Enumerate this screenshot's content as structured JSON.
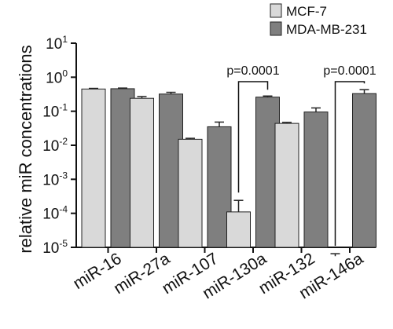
{
  "chart_data": {
    "type": "bar",
    "title": "",
    "xlabel": "",
    "ylabel": "relative miR concentrations",
    "y_scale": "log",
    "ylim": [
      1e-05,
      10
    ],
    "y_ticks": [
      {
        "value": 10,
        "base": "10",
        "exp": "1"
      },
      {
        "value": 1,
        "base": "10",
        "exp": "0"
      },
      {
        "value": 0.1,
        "base": "10",
        "exp": "-1"
      },
      {
        "value": 0.01,
        "base": "10",
        "exp": "-2"
      },
      {
        "value": 0.001,
        "base": "10",
        "exp": "-3"
      },
      {
        "value": 0.0001,
        "base": "10",
        "exp": "-4"
      },
      {
        "value": 1e-05,
        "base": "10",
        "exp": "-5"
      }
    ],
    "categories": [
      "miR-16",
      "miR-27a",
      "miR-107",
      "miR-130a",
      "miR-132",
      "miR-146a"
    ],
    "series": [
      {
        "name": "MCF-7",
        "color": "#d9d9d9",
        "values": [
          0.45,
          0.24,
          0.015,
          0.00011,
          0.044,
          5.5e-06
        ],
        "error_upper": [
          0.47,
          0.27,
          0.016,
          0.00024,
          0.047,
          6.5e-06
        ]
      },
      {
        "name": "MDA-MB-231",
        "color": "#7f7f7f",
        "values": [
          0.46,
          0.32,
          0.035,
          0.26,
          0.095,
          0.33
        ],
        "error_upper": [
          0.48,
          0.36,
          0.048,
          0.28,
          0.125,
          0.43
        ]
      }
    ],
    "legend": {
      "position": "top-right"
    },
    "grid": false,
    "annotations": [
      {
        "category": "miR-130a",
        "text": "p=0.0001"
      },
      {
        "category": "miR-146a",
        "text": "p=0.0001"
      }
    ]
  }
}
